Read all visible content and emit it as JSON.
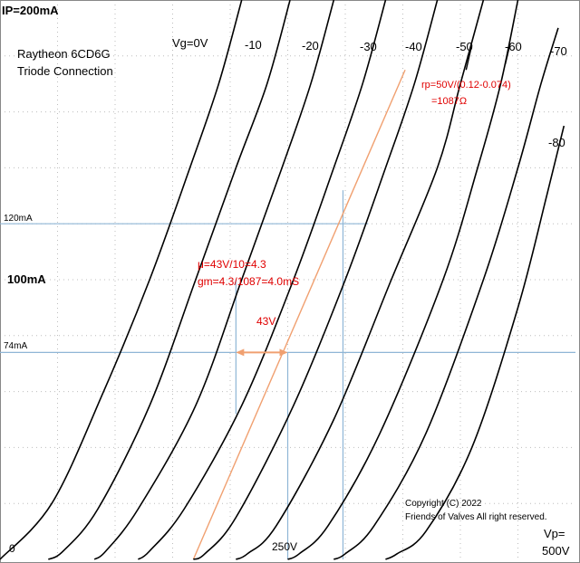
{
  "chart_data": {
    "type": "line",
    "title": "Raytheon 6CD6G",
    "subtitle": "Triode Connection",
    "x_unit_label": "Vp=",
    "x_max_label": "500V",
    "x_mid_label": "250V",
    "x_zero_label": "0",
    "y_max_label": "IP=200mA",
    "y_mid_label": "100mA",
    "xlim": [
      0,
      500
    ],
    "ylim": [
      0,
      200
    ],
    "grid": true,
    "series": [
      {
        "name": "Vg=0V",
        "points": [
          [
            0,
            0
          ],
          [
            45,
            20
          ],
          [
            90,
            60
          ],
          [
            130,
            100
          ],
          [
            165,
            140
          ],
          [
            190,
            170
          ],
          [
            210,
            200
          ]
        ]
      },
      {
        "name": "-10",
        "points": [
          [
            42,
            0
          ],
          [
            55,
            3
          ],
          [
            85,
            18
          ],
          [
            130,
            55
          ],
          [
            170,
            100
          ],
          [
            205,
            140
          ],
          [
            232,
            170
          ],
          [
            252,
            200
          ]
        ]
      },
      {
        "name": "-20",
        "points": [
          [
            82,
            0
          ],
          [
            92,
            3
          ],
          [
            120,
            18
          ],
          [
            170,
            55
          ],
          [
            210,
            100
          ],
          [
            245,
            140
          ],
          [
            270,
            170
          ],
          [
            290,
            200
          ]
        ]
      },
      {
        "name": "-30",
        "points": [
          [
            120,
            0
          ],
          [
            130,
            3
          ],
          [
            160,
            18
          ],
          [
            210,
            55
          ],
          [
            255,
            100
          ],
          [
            290,
            140
          ],
          [
            315,
            170
          ],
          [
            335,
            200
          ]
        ]
      },
      {
        "name": "-40",
        "points": [
          [
            168,
            0
          ],
          [
            178,
            2
          ],
          [
            205,
            15
          ],
          [
            255,
            55
          ],
          [
            300,
            100
          ],
          [
            335,
            140
          ],
          [
            360,
            170
          ],
          [
            380,
            200
          ]
        ]
      },
      {
        "name": "-50",
        "points": [
          [
            205,
            0
          ],
          [
            215,
            2
          ],
          [
            240,
            12
          ],
          [
            290,
            50
          ],
          [
            340,
            100
          ],
          [
            380,
            140
          ],
          [
            400,
            170
          ],
          [
            420,
            200
          ]
        ]
      },
      {
        "name": "-60",
        "points": [
          [
            250,
            0
          ],
          [
            260,
            2
          ],
          [
            285,
            12
          ],
          [
            330,
            45
          ],
          [
            385,
            100
          ],
          [
            415,
            140
          ],
          [
            435,
            170
          ],
          [
            450,
            200
          ]
        ]
      },
      {
        "name": "-70",
        "points": [
          [
            290,
            0
          ],
          [
            300,
            2
          ],
          [
            325,
            12
          ],
          [
            370,
            45
          ],
          [
            420,
            100
          ],
          [
            450,
            140
          ],
          [
            470,
            170
          ],
          [
            485,
            190
          ]
        ]
      },
      {
        "name": "-80",
        "points": [
          [
            335,
            0
          ],
          [
            345,
            2
          ],
          [
            370,
            10
          ],
          [
            410,
            40
          ],
          [
            450,
            90
          ],
          [
            475,
            130
          ],
          [
            490,
            155
          ]
        ]
      }
    ],
    "annotations": {
      "rp": [
        "rp=50V/(0.12-0.074)",
        "=1087Ω"
      ],
      "mu": [
        "μ=43V/10=4.3",
        "gm=4.3/1087=4.0mS"
      ],
      "delta_v": "43V",
      "hline_labels": [
        "120mA",
        "74mA"
      ],
      "copyright": [
        "Copyright (C) 2022",
        "Friends of Valves All right reserved."
      ]
    },
    "construction": {
      "hlines": [
        120,
        74
      ],
      "vlines": [
        250,
        298
      ],
      "tangent": [
        [
          168,
          0
        ],
        [
          352,
          175
        ]
      ],
      "short_vline": {
        "x": 205,
        "y": [
          52,
          100
        ]
      },
      "arrow": {
        "x": [
          205,
          250
        ],
        "y": 74
      }
    }
  },
  "colors": {
    "curve": "#000000",
    "construction": "#8fb6d6",
    "tangent": "#f0a070",
    "arrow": "#f0a070",
    "annotation": "#e00000",
    "grid": "#bdbdbd"
  }
}
